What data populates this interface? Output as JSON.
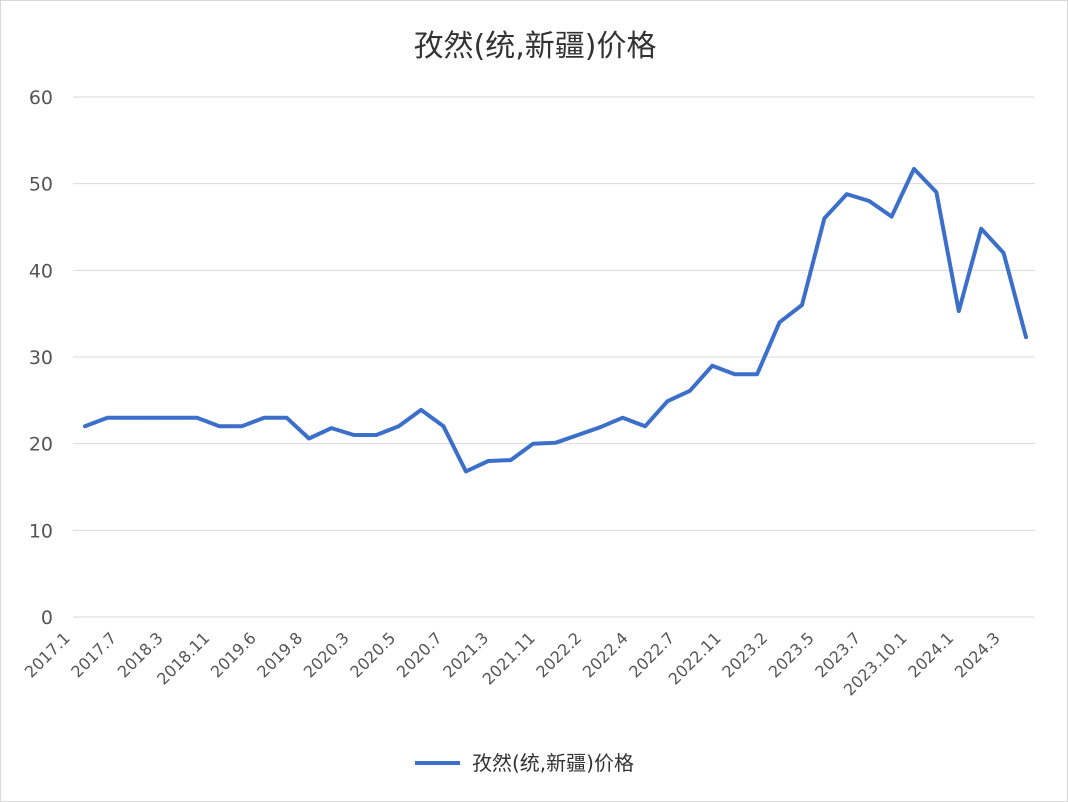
{
  "chart_data": {
    "type": "line",
    "title": "孜然(统,新疆)价格",
    "xlabel": "",
    "ylabel": "",
    "ylim": [
      0,
      60
    ],
    "yticks": [
      0,
      10,
      20,
      30,
      40,
      50,
      60
    ],
    "grid": true,
    "legend_position": "bottom",
    "x_tick_labels": [
      "2017.1",
      "2017.7",
      "2018.3",
      "2018.11",
      "2019.6",
      "2019.8",
      "2020.3",
      "2020.5",
      "2020.7",
      "2021.3",
      "2021.11",
      "2022.2",
      "2022.4",
      "2022.7",
      "2022.11",
      "2023.2",
      "2023.5",
      "2023.7",
      "2023.10.1",
      "2024.1",
      "2024.3"
    ],
    "series": [
      {
        "name": "孜然(统,新疆)价格",
        "color": "#3c6fc9",
        "values": [
          22,
          23,
          23,
          23,
          23,
          23,
          22,
          22,
          23,
          23,
          20.6,
          21.8,
          21,
          21,
          22,
          23.9,
          22,
          16.8,
          18,
          18.1,
          20,
          20.1,
          21,
          21.9,
          23,
          22,
          24.9,
          26.1,
          29,
          28,
          28,
          34,
          36,
          46,
          48.8,
          48,
          46.2,
          51.7,
          49,
          35.3,
          44.8,
          42,
          32.3
        ]
      }
    ]
  }
}
